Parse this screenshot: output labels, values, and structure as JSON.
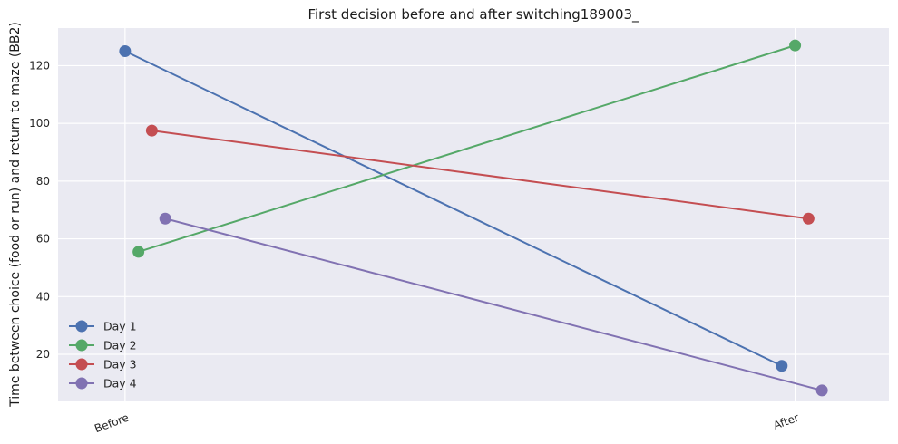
{
  "chart_data": {
    "type": "line",
    "title": "First decision before and after switching189003_",
    "xlabel": "",
    "ylabel": "Time between choice (food or run) and return to maze (BB2)",
    "categories": [
      "Before",
      "After"
    ],
    "yticks": [
      20,
      40,
      60,
      80,
      100,
      120
    ],
    "ylim": [
      4,
      133
    ],
    "grid": true,
    "legend_position": "lower-left",
    "background": "#EAEAF2",
    "series": [
      {
        "name": "Day 1",
        "color": "#4C72B0",
        "x": [
          0.0,
          0.98
        ],
        "values": [
          125,
          16
        ]
      },
      {
        "name": "Day 2",
        "color": "#55A868",
        "x": [
          0.02,
          1.0
        ],
        "values": [
          55.5,
          127
        ]
      },
      {
        "name": "Day 3",
        "color": "#C44E52",
        "x": [
          0.04,
          1.02
        ],
        "values": [
          97.5,
          67
        ]
      },
      {
        "name": "Day 4",
        "color": "#8172B2",
        "x": [
          0.06,
          1.04
        ],
        "values": [
          67,
          7.5
        ]
      }
    ]
  }
}
